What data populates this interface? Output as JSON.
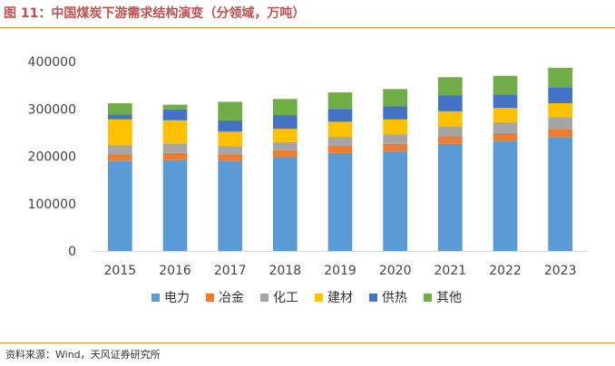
{
  "figure_title": "图 11：中国煤炭下游需求结构演变（分领域，万吨）",
  "source_note": "资料来源：Wind，天风证券研究所",
  "chart_data": {
    "type": "bar",
    "stacked": true,
    "categories": [
      "2015",
      "2016",
      "2017",
      "2018",
      "2019",
      "2020",
      "2021",
      "2022",
      "2023"
    ],
    "series": [
      {
        "name": "电力",
        "color": "#5b9bd5",
        "values": [
          190000,
          192000,
          190000,
          198000,
          207000,
          210000,
          226000,
          232000,
          240000
        ]
      },
      {
        "name": "冶金",
        "color": "#ed7d31",
        "values": [
          14000,
          15000,
          14000,
          15000,
          15000,
          16000,
          16000,
          17000,
          18000
        ]
      },
      {
        "name": "化工",
        "color": "#a5a5a5",
        "values": [
          19000,
          20000,
          17000,
          17000,
          19000,
          20000,
          21000,
          23000,
          25000
        ]
      },
      {
        "name": "建材",
        "color": "#ffc000",
        "values": [
          55000,
          49000,
          31000,
          28000,
          32000,
          32000,
          32000,
          30000,
          29000
        ]
      },
      {
        "name": "供热",
        "color": "#4472c4",
        "values": [
          10000,
          23000,
          24000,
          29000,
          27000,
          28000,
          34000,
          28000,
          34000
        ]
      },
      {
        "name": "其他",
        "color": "#70ad47",
        "values": [
          24000,
          10000,
          39000,
          34000,
          35000,
          36000,
          38000,
          40000,
          41000
        ]
      }
    ],
    "ylim": [
      0,
      400000
    ],
    "yticks": [
      0,
      100000,
      200000,
      300000,
      400000
    ],
    "grid": false,
    "legend_position": "bottom"
  }
}
